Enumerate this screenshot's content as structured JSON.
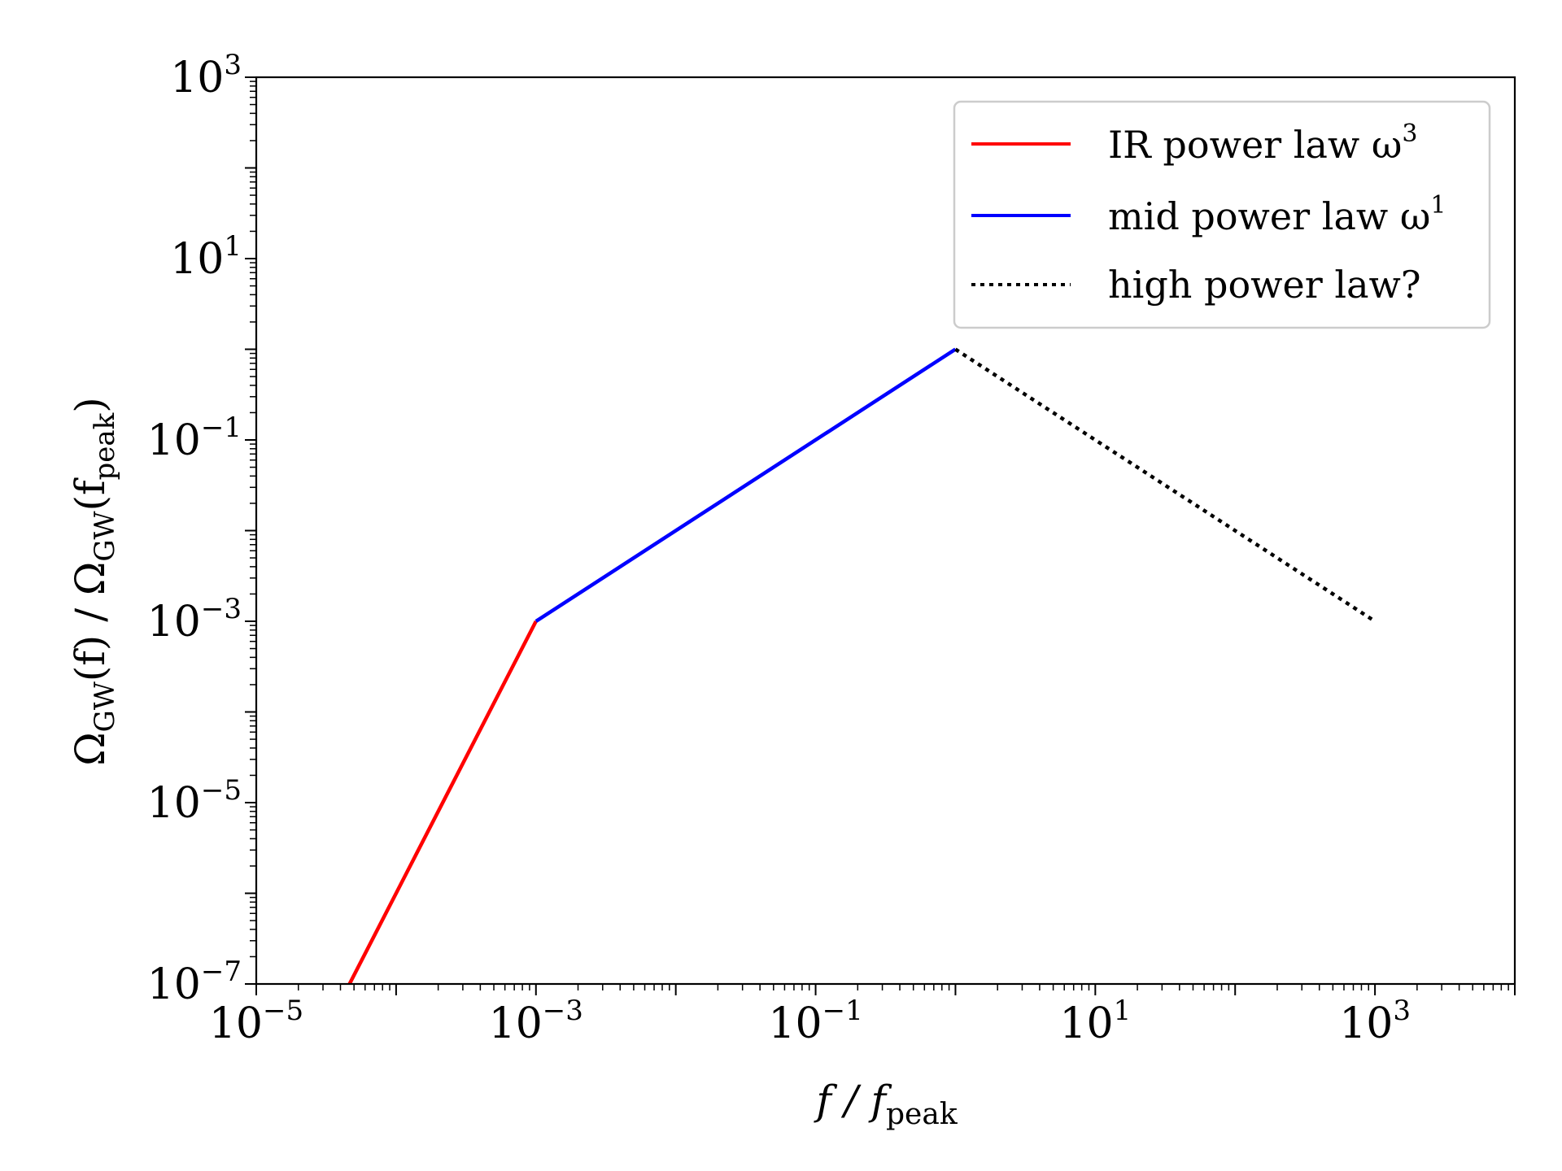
{
  "chart_data": {
    "type": "line",
    "x_scale": "log",
    "y_scale": "log",
    "xlim": [
      1e-05,
      10000
    ],
    "ylim": [
      1e-07,
      1000
    ],
    "xlabel": {
      "main": "f / f",
      "sub": "peak"
    },
    "ylabel": {
      "parts": [
        {
          "text": "Ω",
          "sub": "GW"
        },
        {
          "text": "(f) / Ω",
          "sub": "GW"
        },
        {
          "text": "(f",
          "sub": "peak"
        },
        {
          "text": ")",
          "sub": ""
        }
      ]
    },
    "x_ticks": [
      {
        "value": 1e-05,
        "base": "10",
        "exp": "−5"
      },
      {
        "value": 0.001,
        "base": "10",
        "exp": "−3"
      },
      {
        "value": 0.1,
        "base": "10",
        "exp": "−1"
      },
      {
        "value": 10,
        "base": "10",
        "exp": "1"
      },
      {
        "value": 1000,
        "base": "10",
        "exp": "3"
      }
    ],
    "y_ticks": [
      {
        "value": 1e-07,
        "base": "10",
        "exp": "−7"
      },
      {
        "value": 1e-05,
        "base": "10",
        "exp": "−5"
      },
      {
        "value": 0.001,
        "base": "10",
        "exp": "−3"
      },
      {
        "value": 0.1,
        "base": "10",
        "exp": "−1"
      },
      {
        "value": 10,
        "base": "10",
        "exp": "1"
      },
      {
        "value": 1000,
        "base": "10",
        "exp": "3"
      }
    ],
    "grid": false,
    "legend_position": "top-right",
    "series": [
      {
        "name": "IR power law ω",
        "name_sup": "3",
        "color": "#ff0000",
        "style": "solid",
        "x": [
          4.64e-05,
          0.001
        ],
        "y": [
          1e-07,
          0.001
        ]
      },
      {
        "name": "mid power law ω",
        "name_sup": "1",
        "color": "#0000ff",
        "style": "solid",
        "x": [
          0.001,
          1
        ],
        "y": [
          0.001,
          1
        ]
      },
      {
        "name": "high power law?",
        "name_sup": "",
        "color": "#000000",
        "style": "dotted",
        "x": [
          1,
          1000
        ],
        "y": [
          1,
          0.001
        ]
      }
    ]
  }
}
